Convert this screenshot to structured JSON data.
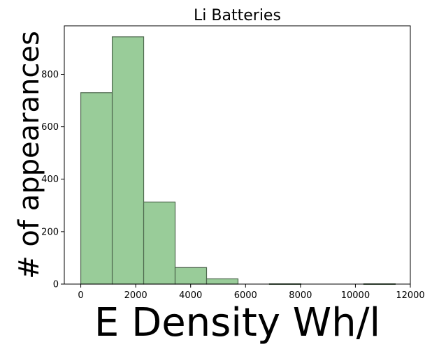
{
  "chart_data": {
    "type": "bar",
    "title": "Li Batteries",
    "xlabel": "E Density Wh/l",
    "ylabel": "# of appearances",
    "xlim": [
      -600,
      12000
    ],
    "ylim": [
      0,
      985
    ],
    "bins": [
      {
        "x0": 0,
        "x1": 1145,
        "value": 730
      },
      {
        "x0": 1145,
        "x1": 2290,
        "value": 943
      },
      {
        "x0": 2290,
        "x1": 3435,
        "value": 313
      },
      {
        "x0": 3435,
        "x1": 4580,
        "value": 63
      },
      {
        "x0": 4580,
        "x1": 5725,
        "value": 20
      },
      {
        "x0": 5725,
        "x1": 6870,
        "value": 0
      },
      {
        "x0": 6870,
        "x1": 8015,
        "value": 1
      },
      {
        "x0": 8015,
        "x1": 9160,
        "value": 0
      },
      {
        "x0": 9160,
        "x1": 10305,
        "value": 0
      },
      {
        "x0": 10305,
        "x1": 11450,
        "value": 1
      }
    ],
    "xticks": [
      0,
      2000,
      4000,
      6000,
      8000,
      10000,
      12000
    ],
    "yticks": [
      0,
      200,
      400,
      600,
      800
    ],
    "bar_color": "#99cc99",
    "edge_color": "#4d674d",
    "grid": false,
    "legend": "none"
  }
}
